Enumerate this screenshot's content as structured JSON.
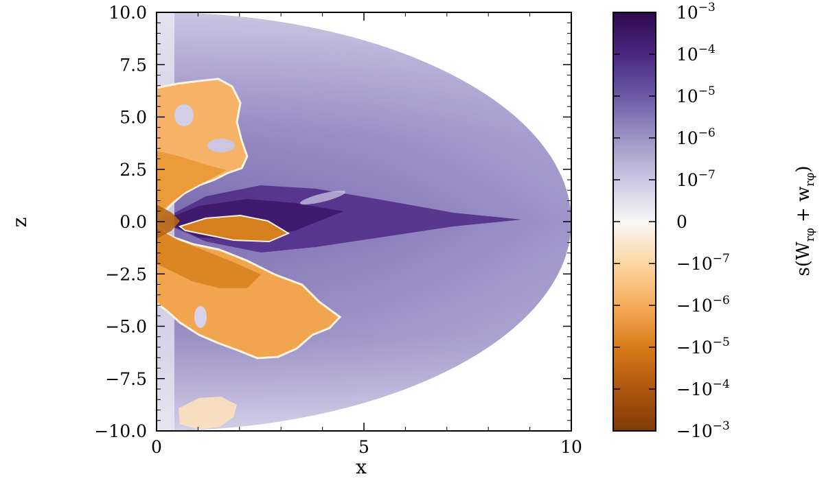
{
  "chart_data": {
    "type": "heatmap",
    "title": "",
    "xlabel": "x",
    "ylabel": "z",
    "xlim": [
      0,
      10
    ],
    "ylim": [
      -10,
      10
    ],
    "x_ticks": [
      0,
      5,
      10
    ],
    "x_tick_labels": [
      "0",
      "5",
      "10"
    ],
    "y_ticks": [
      10,
      7.5,
      5,
      2.5,
      0,
      -2.5,
      -5,
      -7.5,
      -10
    ],
    "y_tick_labels": [
      "10.0",
      "7.5",
      "5.0",
      "2.5",
      "0.0",
      "−2.5",
      "−5.0",
      "−7.5",
      "−10.0"
    ],
    "domain": "half-disk r ≤ 10, x ≥ 0",
    "colorbar": {
      "label": "s(W_{rφ} + w_{rφ})",
      "label_display": [
        "s(W",
        "rφ",
        " + w",
        "rφ",
        ")"
      ],
      "scale": "symmetric log",
      "ticks": [
        {
          "value": 0.001,
          "base": "10",
          "exp": "−3",
          "sign": ""
        },
        {
          "value": 0.0001,
          "base": "10",
          "exp": "−4",
          "sign": ""
        },
        {
          "value": 1e-05,
          "base": "10",
          "exp": "−5",
          "sign": ""
        },
        {
          "value": 1e-06,
          "base": "10",
          "exp": "−6",
          "sign": ""
        },
        {
          "value": 1e-07,
          "base": "10",
          "exp": "−7",
          "sign": ""
        },
        {
          "value": 0,
          "base": "0",
          "exp": "",
          "sign": ""
        },
        {
          "value": -1e-07,
          "base": "10",
          "exp": "−7",
          "sign": "−"
        },
        {
          "value": -1e-06,
          "base": "10",
          "exp": "−6",
          "sign": "−"
        },
        {
          "value": -1e-05,
          "base": "10",
          "exp": "−5",
          "sign": "−"
        },
        {
          "value": -0.0001,
          "base": "10",
          "exp": "−4",
          "sign": "−"
        },
        {
          "value": -0.001,
          "base": "10",
          "exp": "−3",
          "sign": "−"
        }
      ],
      "colors": {
        "positive_max": "#2d0a4e",
        "positive_mid": "#7b6bb0",
        "positive_low": "#c9c4e0",
        "zero": "#f7f7f7",
        "negative_low": "#fdd9a8",
        "negative_mid": "#e8902c",
        "negative_max": "#7f3b08"
      }
    },
    "regions": [
      {
        "sign": "positive",
        "description": "background",
        "level": 1e-05
      },
      {
        "sign": "positive",
        "description": "equatorial wedge",
        "level": 0.0001
      },
      {
        "sign": "negative",
        "description": "upper lobe",
        "level": 1e-05
      },
      {
        "sign": "negative",
        "description": "lower lobe",
        "level": 1e-05
      },
      {
        "sign": "negative",
        "description": "near-origin core",
        "level": 0.0001
      },
      {
        "sign": "near-zero",
        "description": "bottom-left patch",
        "level": 1e-07
      }
    ]
  }
}
